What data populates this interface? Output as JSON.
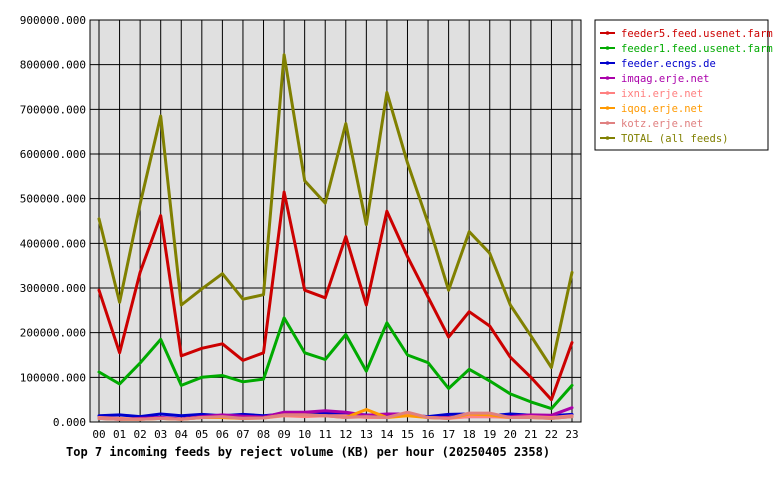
{
  "chart_data": {
    "type": "line",
    "title": "Top 7 incoming feeds by reject volume (KB) per hour (20250405 2358)",
    "xlabel": "",
    "ylabel": "",
    "categories": [
      "00",
      "01",
      "02",
      "03",
      "04",
      "05",
      "06",
      "07",
      "08",
      "09",
      "10",
      "11",
      "12",
      "13",
      "14",
      "15",
      "16",
      "17",
      "18",
      "19",
      "20",
      "21",
      "22",
      "23"
    ],
    "ylim": [
      0,
      900000
    ],
    "y_ticks": [
      0,
      100000,
      200000,
      300000,
      400000,
      500000,
      600000,
      700000,
      800000,
      900000
    ],
    "y_tick_labels": [
      "0.000",
      "100000.000",
      "200000.000",
      "300000.000",
      "400000.000",
      "500000.000",
      "600000.000",
      "700000.000",
      "800000.000",
      "900000.000"
    ],
    "grid": true,
    "legend_position": "right",
    "series": [
      {
        "name": "feeder5.feed.usenet.farm",
        "color": "#cc0000",
        "values": [
          295000,
          155000,
          335000,
          462000,
          148000,
          165000,
          175000,
          138000,
          155000,
          515000,
          295000,
          278000,
          415000,
          262000,
          472000,
          370000,
          280000,
          190000,
          247000,
          215000,
          145000,
          100000,
          50000,
          178000
        ]
      },
      {
        "name": "feeder1.feed.usenet.farm",
        "color": "#00aa00",
        "values": [
          112000,
          85000,
          132000,
          185000,
          82000,
          100000,
          104000,
          90000,
          96000,
          233000,
          155000,
          140000,
          196000,
          114000,
          222000,
          150000,
          133000,
          75000,
          118000,
          92000,
          63000,
          45000,
          30000,
          82000
        ]
      },
      {
        "name": "feeder.ecngs.de",
        "color": "#0000cc",
        "values": [
          14000,
          16000,
          12000,
          18000,
          14000,
          17000,
          14000,
          17000,
          14000,
          18000,
          20000,
          20000,
          18000,
          16000,
          15000,
          16000,
          12000,
          17000,
          18000,
          14000,
          18000,
          15000,
          14000,
          17000
        ]
      },
      {
        "name": "imqag.erje.net",
        "color": "#aa00aa",
        "values": [
          8000,
          6000,
          8000,
          10000,
          7000,
          12000,
          16000,
          13000,
          11000,
          22000,
          22000,
          25000,
          22000,
          15000,
          18000,
          18000,
          10000,
          10000,
          12000,
          12000,
          12000,
          16000,
          15000,
          32000
        ]
      },
      {
        "name": "ixni.erje.net",
        "color": "#ff8080",
        "values": [
          10000,
          8000,
          6000,
          8000,
          6000,
          10000,
          10000,
          8000,
          9000,
          14000,
          12000,
          14000,
          14000,
          10000,
          10000,
          16000,
          10000,
          8000,
          12000,
          12000,
          10000,
          12000,
          10000,
          14000
        ]
      },
      {
        "name": "iqoq.erje.net",
        "color": "#ff9900",
        "values": [
          8000,
          6000,
          6000,
          8000,
          6000,
          10000,
          10000,
          8000,
          9000,
          16000,
          16000,
          14000,
          10000,
          28000,
          10000,
          14000,
          10000,
          8000,
          18000,
          16000,
          10000,
          10000,
          8000,
          12000
        ]
      },
      {
        "name": "kotz.erje.net",
        "color": "#e08080",
        "values": [
          8000,
          6000,
          6000,
          8000,
          6000,
          10000,
          12000,
          8000,
          9000,
          16000,
          16000,
          14000,
          10000,
          12000,
          10000,
          22000,
          10000,
          8000,
          20000,
          20000,
          10000,
          10000,
          8000,
          12000
        ]
      },
      {
        "name": "TOTAL (all feeds)",
        "color": "#808000",
        "values": [
          455000,
          268000,
          488000,
          685000,
          262000,
          298000,
          332000,
          275000,
          285000,
          822000,
          540000,
          490000,
          668000,
          442000,
          738000,
          580000,
          446000,
          295000,
          426000,
          378000,
          262000,
          193000,
          122000,
          335000
        ]
      }
    ]
  }
}
